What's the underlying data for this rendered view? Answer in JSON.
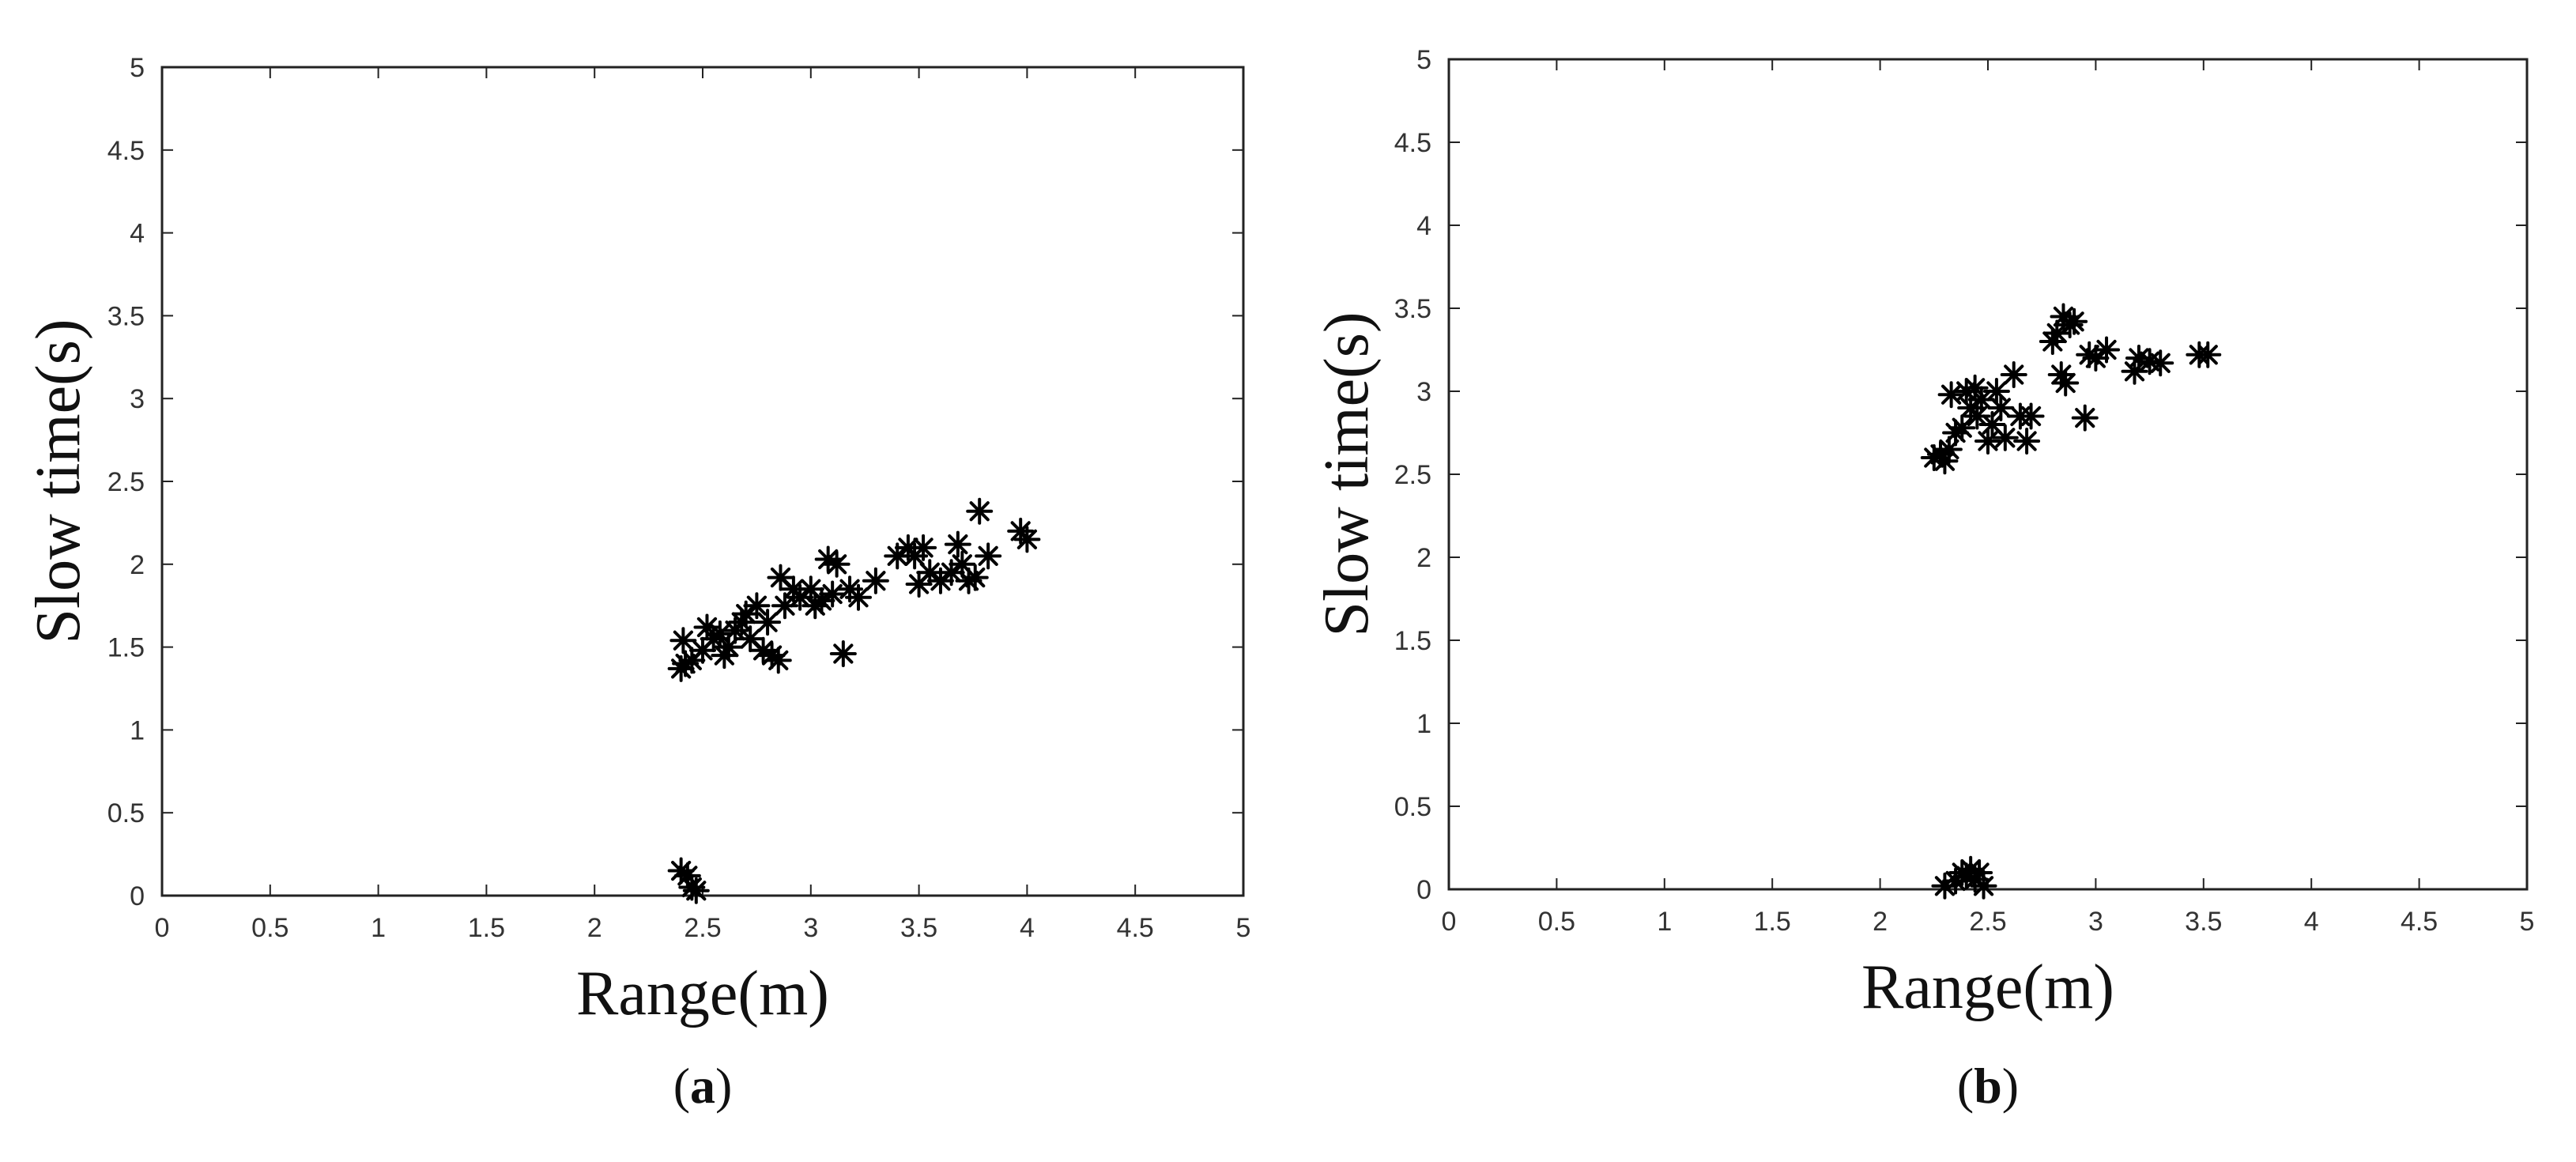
{
  "chart_data": [
    {
      "type": "scatter",
      "panel_label": "a",
      "xlabel": "Range(m)",
      "ylabel": "Slow time(s)",
      "xlim": [
        0,
        5
      ],
      "ylim": [
        0,
        5
      ],
      "xticks": [
        "0",
        "0.5",
        "1",
        "1.5",
        "2",
        "2.5",
        "3",
        "3.5",
        "4",
        "4.5",
        "5"
      ],
      "yticks": [
        "0",
        "0.5",
        "1",
        "1.5",
        "2",
        "2.5",
        "3",
        "3.5",
        "4",
        "4.5",
        "5"
      ],
      "marker": "asterisk",
      "grid": false,
      "points": [
        [
          2.4,
          1.37
        ],
        [
          2.42,
          1.4
        ],
        [
          2.41,
          1.54
        ],
        [
          2.45,
          1.42
        ],
        [
          2.5,
          1.48
        ],
        [
          2.52,
          1.62
        ],
        [
          2.55,
          1.55
        ],
        [
          2.58,
          1.58
        ],
        [
          2.6,
          1.45
        ],
        [
          2.62,
          1.5
        ],
        [
          2.65,
          1.6
        ],
        [
          2.68,
          1.65
        ],
        [
          2.7,
          1.7
        ],
        [
          2.72,
          1.55
        ],
        [
          2.75,
          1.75
        ],
        [
          2.78,
          1.48
        ],
        [
          2.8,
          1.65
        ],
        [
          2.82,
          1.45
        ],
        [
          2.85,
          1.42
        ],
        [
          2.86,
          1.92
        ],
        [
          2.88,
          1.75
        ],
        [
          2.92,
          1.85
        ],
        [
          2.95,
          1.8
        ],
        [
          3.0,
          1.85
        ],
        [
          3.02,
          1.75
        ],
        [
          3.05,
          1.78
        ],
        [
          3.08,
          2.03
        ],
        [
          3.1,
          1.82
        ],
        [
          3.12,
          2.0
        ],
        [
          3.15,
          1.46
        ],
        [
          3.18,
          1.85
        ],
        [
          3.22,
          1.8
        ],
        [
          3.3,
          1.9
        ],
        [
          3.4,
          2.05
        ],
        [
          3.45,
          2.1
        ],
        [
          3.48,
          2.05
        ],
        [
          3.5,
          1.88
        ],
        [
          3.52,
          2.1
        ],
        [
          3.55,
          1.95
        ],
        [
          3.6,
          1.9
        ],
        [
          3.65,
          1.95
        ],
        [
          3.68,
          2.12
        ],
        [
          3.7,
          2.0
        ],
        [
          3.73,
          1.9
        ],
        [
          3.76,
          1.92
        ],
        [
          3.78,
          2.32
        ],
        [
          3.82,
          2.05
        ],
        [
          3.97,
          2.2
        ],
        [
          4.0,
          2.15
        ],
        [
          2.4,
          0.15
        ],
        [
          2.43,
          0.12
        ],
        [
          2.45,
          0.05
        ],
        [
          2.47,
          0.03
        ]
      ]
    },
    {
      "type": "scatter",
      "panel_label": "b",
      "xlabel": "Range(m)",
      "ylabel": "Slow time(s)",
      "xlim": [
        0,
        5
      ],
      "ylim": [
        0,
        5
      ],
      "xticks": [
        "0",
        "0.5",
        "1",
        "1.5",
        "2",
        "2.5",
        "3",
        "3.5",
        "4",
        "4.5",
        "5"
      ],
      "yticks": [
        "0",
        "0.5",
        "1",
        "1.5",
        "2",
        "2.5",
        "3",
        "3.5",
        "4",
        "4.5",
        "5"
      ],
      "marker": "asterisk",
      "grid": false,
      "points": [
        [
          2.25,
          2.6
        ],
        [
          2.28,
          2.62
        ],
        [
          2.3,
          2.58
        ],
        [
          2.32,
          2.65
        ],
        [
          2.33,
          2.98
        ],
        [
          2.35,
          2.75
        ],
        [
          2.38,
          2.78
        ],
        [
          2.4,
          3.0
        ],
        [
          2.42,
          2.9
        ],
        [
          2.44,
          3.02
        ],
        [
          2.45,
          2.85
        ],
        [
          2.47,
          2.95
        ],
        [
          2.5,
          2.7
        ],
        [
          2.52,
          2.8
        ],
        [
          2.54,
          3.0
        ],
        [
          2.56,
          2.9
        ],
        [
          2.58,
          2.72
        ],
        [
          2.62,
          3.1
        ],
        [
          2.65,
          2.85
        ],
        [
          2.68,
          2.7
        ],
        [
          2.7,
          2.85
        ],
        [
          2.8,
          3.3
        ],
        [
          2.82,
          3.35
        ],
        [
          2.84,
          3.1
        ],
        [
          2.85,
          3.45
        ],
        [
          2.86,
          3.05
        ],
        [
          2.88,
          3.4
        ],
        [
          2.9,
          3.42
        ],
        [
          2.95,
          2.84
        ],
        [
          2.97,
          3.22
        ],
        [
          3.0,
          3.2
        ],
        [
          3.05,
          3.25
        ],
        [
          3.18,
          3.12
        ],
        [
          3.2,
          3.2
        ],
        [
          3.25,
          3.18
        ],
        [
          3.3,
          3.17
        ],
        [
          3.48,
          3.22
        ],
        [
          3.52,
          3.22
        ],
        [
          2.3,
          0.02
        ],
        [
          2.35,
          0.05
        ],
        [
          2.38,
          0.1
        ],
        [
          2.4,
          0.08
        ],
        [
          2.42,
          0.12
        ],
        [
          2.44,
          0.06
        ],
        [
          2.46,
          0.1
        ],
        [
          2.48,
          0.02
        ]
      ]
    }
  ]
}
